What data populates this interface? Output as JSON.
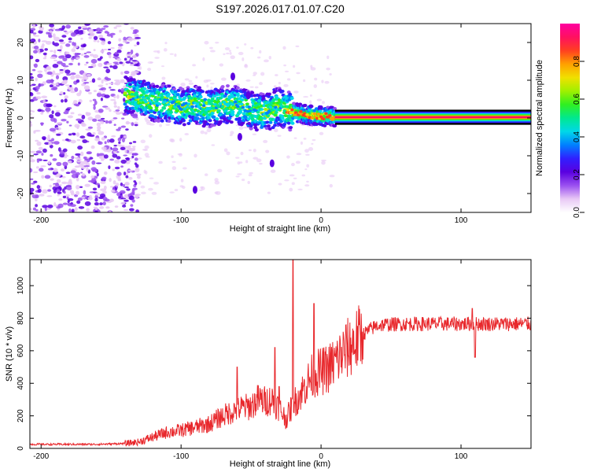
{
  "title": "S197.2026.017.01.07.C20",
  "chart_data": [
    {
      "type": "heatmap",
      "name": "spectrogram",
      "xlabel": "Height of straight line (km)",
      "ylabel": "Frequency (Hz)",
      "xlim": [
        -208,
        150
      ],
      "ylim": [
        -25,
        25
      ],
      "xticks": [
        -200,
        -100,
        0,
        100
      ],
      "yticks": [
        -20,
        -10,
        0,
        10,
        20
      ],
      "colorbar": {
        "label": "Normalized spectral amplitude",
        "range": [
          0.0,
          1.0
        ],
        "ticks": [
          0.0,
          0.2,
          0.4,
          0.6,
          0.8
        ],
        "colors": [
          "#ffffff",
          "#e8c8f5",
          "#9a50f0",
          "#5a00e0",
          "#3020ff",
          "#0080ff",
          "#00d8e8",
          "#00e890",
          "#30f020",
          "#a0f000",
          "#f0e000",
          "#ffa000",
          "#ff4020",
          "#ff1060",
          "#ff00a0"
        ]
      },
      "track_points": [
        [
          -140,
          6.0
        ],
        [
          -130,
          5.5
        ],
        [
          -120,
          4.0
        ],
        [
          -110,
          4.2
        ],
        [
          -100,
          3.0
        ],
        [
          -90,
          3.5
        ],
        [
          -80,
          2.5
        ],
        [
          -70,
          3.6
        ],
        [
          -60,
          3.5
        ],
        [
          -50,
          2.0
        ],
        [
          -40,
          1.5
        ],
        [
          -30,
          3.0
        ],
        [
          -20,
          1.5
        ],
        [
          -10,
          0.8
        ],
        [
          0,
          0.5
        ],
        [
          10,
          0.3
        ],
        [
          20,
          0.2
        ],
        [
          50,
          0.2
        ],
        [
          80,
          0.2
        ],
        [
          100,
          0.2
        ],
        [
          150,
          0.2
        ]
      ],
      "outliers": [
        [
          -58,
          -5.0
        ],
        [
          -35,
          -12.0
        ],
        [
          -63,
          11.0
        ],
        [
          -52,
          6.0
        ],
        [
          -90,
          -19.0
        ]
      ]
    },
    {
      "type": "line",
      "name": "snr",
      "xlabel": "Height of straight line (km)",
      "ylabel": "SNR (10 * v/v)",
      "xlim": [
        -208,
        150
      ],
      "ylim": [
        0,
        1160
      ],
      "xticks": [
        -200,
        -100,
        0,
        100
      ],
      "yticks": [
        0,
        200,
        400,
        600,
        800,
        1000
      ],
      "color": "#e8282c",
      "baseline": [
        [
          -208,
          25
        ],
        [
          -160,
          25
        ],
        [
          -140,
          30
        ],
        [
          -130,
          40
        ],
        [
          -120,
          70
        ],
        [
          -110,
          100
        ],
        [
          -100,
          110
        ],
        [
          -90,
          130
        ],
        [
          -80,
          150
        ],
        [
          -70,
          200
        ],
        [
          -60,
          240
        ],
        [
          -50,
          260
        ],
        [
          -45,
          300
        ],
        [
          -40,
          290
        ],
        [
          -35,
          300
        ],
        [
          -30,
          250
        ],
        [
          -25,
          180
        ],
        [
          -20,
          270
        ],
        [
          -15,
          330
        ],
        [
          -10,
          400
        ],
        [
          -5,
          460
        ],
        [
          0,
          470
        ],
        [
          5,
          490
        ],
        [
          10,
          530
        ],
        [
          15,
          580
        ],
        [
          20,
          620
        ],
        [
          25,
          660
        ],
        [
          30,
          700
        ],
        [
          35,
          730
        ],
        [
          40,
          755
        ],
        [
          45,
          760
        ],
        [
          60,
          765
        ],
        [
          80,
          765
        ],
        [
          100,
          765
        ],
        [
          120,
          765
        ],
        [
          150,
          765
        ]
      ],
      "spikes": [
        [
          -20,
          1160
        ],
        [
          -33,
          620
        ],
        [
          -30,
          380
        ],
        [
          -5,
          890
        ],
        [
          110,
          560
        ],
        [
          108,
          860
        ],
        [
          -60,
          500
        ]
      ]
    }
  ]
}
